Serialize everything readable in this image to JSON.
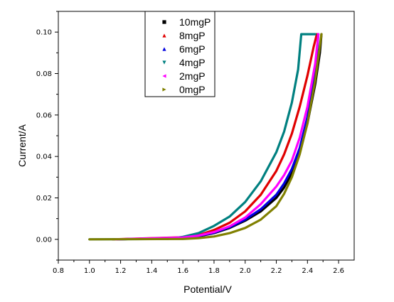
{
  "chart_data": {
    "type": "line",
    "title": "",
    "xlabel": "Potential/V",
    "ylabel": "Current/A",
    "xlim": [
      0.8,
      2.7
    ],
    "ylim": [
      -0.01,
      0.11
    ],
    "x_ticks": [
      "0.8",
      "1.0",
      "1.2",
      "1.4",
      "1.6",
      "1.8",
      "2.0",
      "2.2",
      "2.4",
      "2.6"
    ],
    "y_ticks": [
      "0.00",
      "0.02",
      "0.04",
      "0.06",
      "0.08",
      "0.10"
    ],
    "grid": false,
    "legend_position": "top-center",
    "series": [
      {
        "name": "10mgP",
        "color": "#000000",
        "marker": "square",
        "x": [
          1.18,
          1.6,
          1.7,
          1.8,
          1.9,
          2.0,
          2.1,
          2.2,
          2.25,
          2.3,
          2.35,
          2.4,
          2.45,
          2.48,
          2.49
        ],
        "y": [
          0.0,
          0.0008,
          0.0015,
          0.003,
          0.0055,
          0.009,
          0.0135,
          0.02,
          0.025,
          0.032,
          0.042,
          0.056,
          0.075,
          0.09,
          0.099
        ]
      },
      {
        "name": "8mgP",
        "color": "#e00000",
        "marker": "triangle-up",
        "x": [
          1.15,
          1.6,
          1.7,
          1.8,
          1.9,
          2.0,
          2.1,
          2.2,
          2.25,
          2.3,
          2.35,
          2.4,
          2.44,
          2.46
        ],
        "y": [
          0.0,
          0.001,
          0.002,
          0.0045,
          0.008,
          0.0135,
          0.0215,
          0.033,
          0.041,
          0.051,
          0.064,
          0.079,
          0.093,
          0.099
        ]
      },
      {
        "name": "6mgP",
        "color": "#0000e0",
        "marker": "triangle-up",
        "x": [
          1.18,
          1.6,
          1.7,
          1.8,
          1.9,
          2.0,
          2.1,
          2.2,
          2.25,
          2.3,
          2.35,
          2.4,
          2.45,
          2.47
        ],
        "y": [
          0.0,
          0.0008,
          0.0016,
          0.0032,
          0.0058,
          0.0095,
          0.0145,
          0.0215,
          0.027,
          0.034,
          0.044,
          0.059,
          0.08,
          0.099
        ]
      },
      {
        "name": "4mgP",
        "color": "#008080",
        "marker": "triangle-down",
        "x": [
          1.0,
          1.5,
          1.6,
          1.7,
          1.8,
          1.9,
          2.0,
          2.1,
          2.2,
          2.25,
          2.3,
          2.34,
          2.36,
          2.45
        ],
        "y": [
          0.0,
          0.0002,
          0.0012,
          0.003,
          0.0065,
          0.011,
          0.018,
          0.028,
          0.042,
          0.052,
          0.066,
          0.082,
          0.099,
          0.099
        ]
      },
      {
        "name": "2mgP",
        "color": "#ff00ff",
        "marker": "triangle-left",
        "x": [
          1.17,
          1.6,
          1.7,
          1.8,
          1.9,
          2.0,
          2.1,
          2.2,
          2.25,
          2.3,
          2.35,
          2.4,
          2.45,
          2.47
        ],
        "y": [
          0.0,
          0.0009,
          0.0018,
          0.0035,
          0.0063,
          0.0105,
          0.017,
          0.0255,
          0.031,
          0.038,
          0.049,
          0.064,
          0.085,
          0.099
        ]
      },
      {
        "name": "0mgP",
        "color": "#808000",
        "marker": "triangle-right",
        "x": [
          1.0,
          1.6,
          1.7,
          1.8,
          1.9,
          2.0,
          2.1,
          2.2,
          2.25,
          2.3,
          2.35,
          2.4,
          2.45,
          2.49
        ],
        "y": [
          0.0,
          0.0002,
          0.0006,
          0.0014,
          0.003,
          0.0055,
          0.0095,
          0.016,
          0.022,
          0.03,
          0.041,
          0.056,
          0.077,
          0.099
        ]
      }
    ]
  }
}
